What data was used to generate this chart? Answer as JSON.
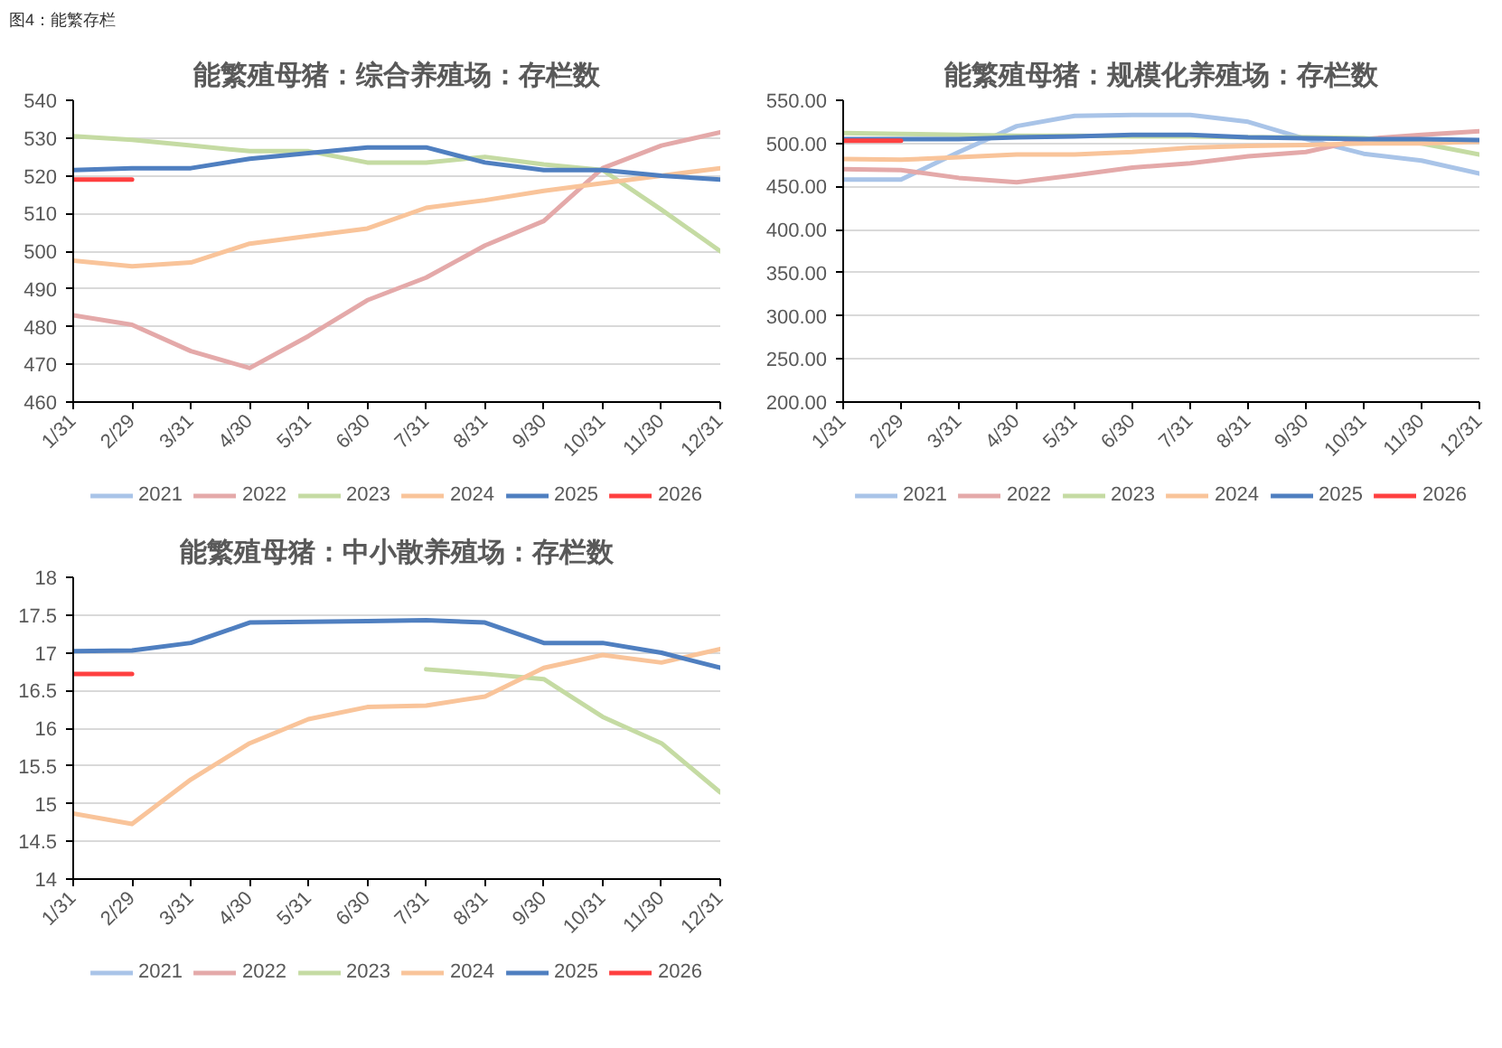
{
  "chart_data": [
    {
      "type": "line",
      "title": "能繁殖母猪：综合养殖场：存栏数",
      "annotations": [
        "图4：能繁存栏"
      ],
      "categories": [
        "1/31",
        "2/29",
        "3/31",
        "4/30",
        "5/31",
        "6/30",
        "7/31",
        "8/31",
        "9/30",
        "10/31",
        "11/30",
        "12/31"
      ],
      "ylim": [
        460,
        540
      ],
      "yticks": [
        460,
        470,
        480,
        490,
        500,
        510,
        520,
        530,
        540
      ],
      "grid": "y",
      "legend": "bottom",
      "series": [
        {
          "name": "2021",
          "color": "#a9c4e8",
          "values": [
            null,
            null,
            null,
            null,
            null,
            null,
            null,
            null,
            null,
            null,
            null,
            null
          ]
        },
        {
          "name": "2022",
          "color": "#e4a9a9",
          "values": [
            483,
            480.5,
            473.5,
            469,
            477.5,
            487,
            493,
            501.5,
            508,
            522,
            528,
            531.5
          ]
        },
        {
          "name": "2023",
          "color": "#c5dba3",
          "values": [
            530.5,
            529.5,
            528,
            526.5,
            526.5,
            523.5,
            523.5,
            525,
            523,
            521.5,
            511,
            500
          ]
        },
        {
          "name": "2024",
          "color": "#f9c49a",
          "values": [
            497.5,
            496,
            497,
            502,
            504,
            506,
            511.5,
            513.5,
            516,
            518,
            520,
            522
          ]
        },
        {
          "name": "2025",
          "color": "#4f7fc0",
          "values": [
            521.5,
            522,
            522,
            524.5,
            526,
            527.5,
            527.5,
            523.5,
            521.5,
            521.5,
            520,
            519
          ]
        },
        {
          "name": "2026",
          "color": "#ff4040",
          "values": [
            519,
            519,
            null,
            null,
            null,
            null,
            null,
            null,
            null,
            null,
            null,
            null
          ]
        }
      ]
    },
    {
      "type": "line",
      "title": "能繁殖母猪：规模化养殖场：存栏数",
      "categories": [
        "1/31",
        "2/29",
        "3/31",
        "4/30",
        "5/31",
        "6/30",
        "7/31",
        "8/31",
        "9/30",
        "10/31",
        "11/30",
        "12/31"
      ],
      "ylim": [
        200,
        550
      ],
      "yticks": [
        {
          "value": 200,
          "label": "200.00"
        },
        {
          "value": 250,
          "label": "250.00"
        },
        {
          "value": 300,
          "label": "300.00"
        },
        {
          "value": 350,
          "label": "350.00"
        },
        {
          "value": 400,
          "label": "400.00"
        },
        {
          "value": 450,
          "label": "450.00"
        },
        {
          "value": 500,
          "label": "500.00"
        },
        {
          "value": 550,
          "label": "550.00"
        }
      ],
      "grid": "y",
      "legend": "bottom",
      "series": [
        {
          "name": "2021",
          "color": "#a9c4e8",
          "values": [
            458,
            458,
            490,
            520,
            532,
            533,
            533,
            525,
            505,
            488,
            480,
            465
          ]
        },
        {
          "name": "2022",
          "color": "#e4a9a9",
          "values": [
            470,
            469,
            460,
            455,
            463,
            472,
            477,
            485,
            490,
            505,
            510,
            514
          ]
        },
        {
          "name": "2023",
          "color": "#c5dba3",
          "values": [
            512,
            511,
            510,
            509,
            509,
            508,
            508,
            507,
            507,
            506,
            500,
            487
          ]
        },
        {
          "name": "2024",
          "color": "#f9c49a",
          "values": [
            482,
            481,
            484,
            487,
            487,
            490,
            495,
            497,
            498,
            500,
            500,
            502
          ]
        },
        {
          "name": "2025",
          "color": "#4f7fc0",
          "values": [
            505,
            505,
            505,
            507,
            508,
            510,
            510,
            507,
            506,
            505,
            505,
            504
          ]
        },
        {
          "name": "2026",
          "color": "#ff4040",
          "values": [
            503,
            503,
            null,
            null,
            null,
            null,
            null,
            null,
            null,
            null,
            null,
            null
          ]
        }
      ]
    },
    {
      "type": "line",
      "title": "能繁殖母猪：中小散养殖场：存栏数",
      "categories": [
        "1/31",
        "2/29",
        "3/31",
        "4/30",
        "5/31",
        "6/30",
        "7/31",
        "8/31",
        "9/30",
        "10/31",
        "11/30",
        "12/31"
      ],
      "ylim": [
        14,
        18
      ],
      "yticks": [
        14,
        14.5,
        15,
        15.5,
        16,
        16.5,
        17,
        17.5,
        18
      ],
      "grid": "y",
      "legend": "bottom",
      "series": [
        {
          "name": "2021",
          "color": "#a9c4e8",
          "values": [
            null,
            null,
            null,
            null,
            null,
            null,
            null,
            null,
            null,
            null,
            null,
            null
          ]
        },
        {
          "name": "2022",
          "color": "#e4a9a9",
          "values": [
            null,
            null,
            null,
            null,
            null,
            null,
            null,
            null,
            null,
            null,
            null,
            null
          ]
        },
        {
          "name": "2023",
          "color": "#c5dba3",
          "values": [
            null,
            null,
            null,
            null,
            null,
            null,
            16.78,
            16.72,
            16.65,
            16.15,
            15.8,
            15.15
          ]
        },
        {
          "name": "2024",
          "color": "#f9c49a",
          "values": [
            14.87,
            14.73,
            15.32,
            15.8,
            16.12,
            16.28,
            16.3,
            16.42,
            16.8,
            16.97,
            16.87,
            17.05
          ]
        },
        {
          "name": "2025",
          "color": "#4f7fc0",
          "values": [
            17.02,
            17.03,
            17.13,
            17.4,
            17.41,
            17.42,
            17.43,
            17.4,
            17.13,
            17.13,
            17.0,
            16.8
          ]
        },
        {
          "name": "2026",
          "color": "#ff4040",
          "values": [
            16.72,
            16.72,
            null,
            null,
            null,
            null,
            null,
            null,
            null,
            null,
            null,
            null
          ]
        }
      ]
    }
  ]
}
